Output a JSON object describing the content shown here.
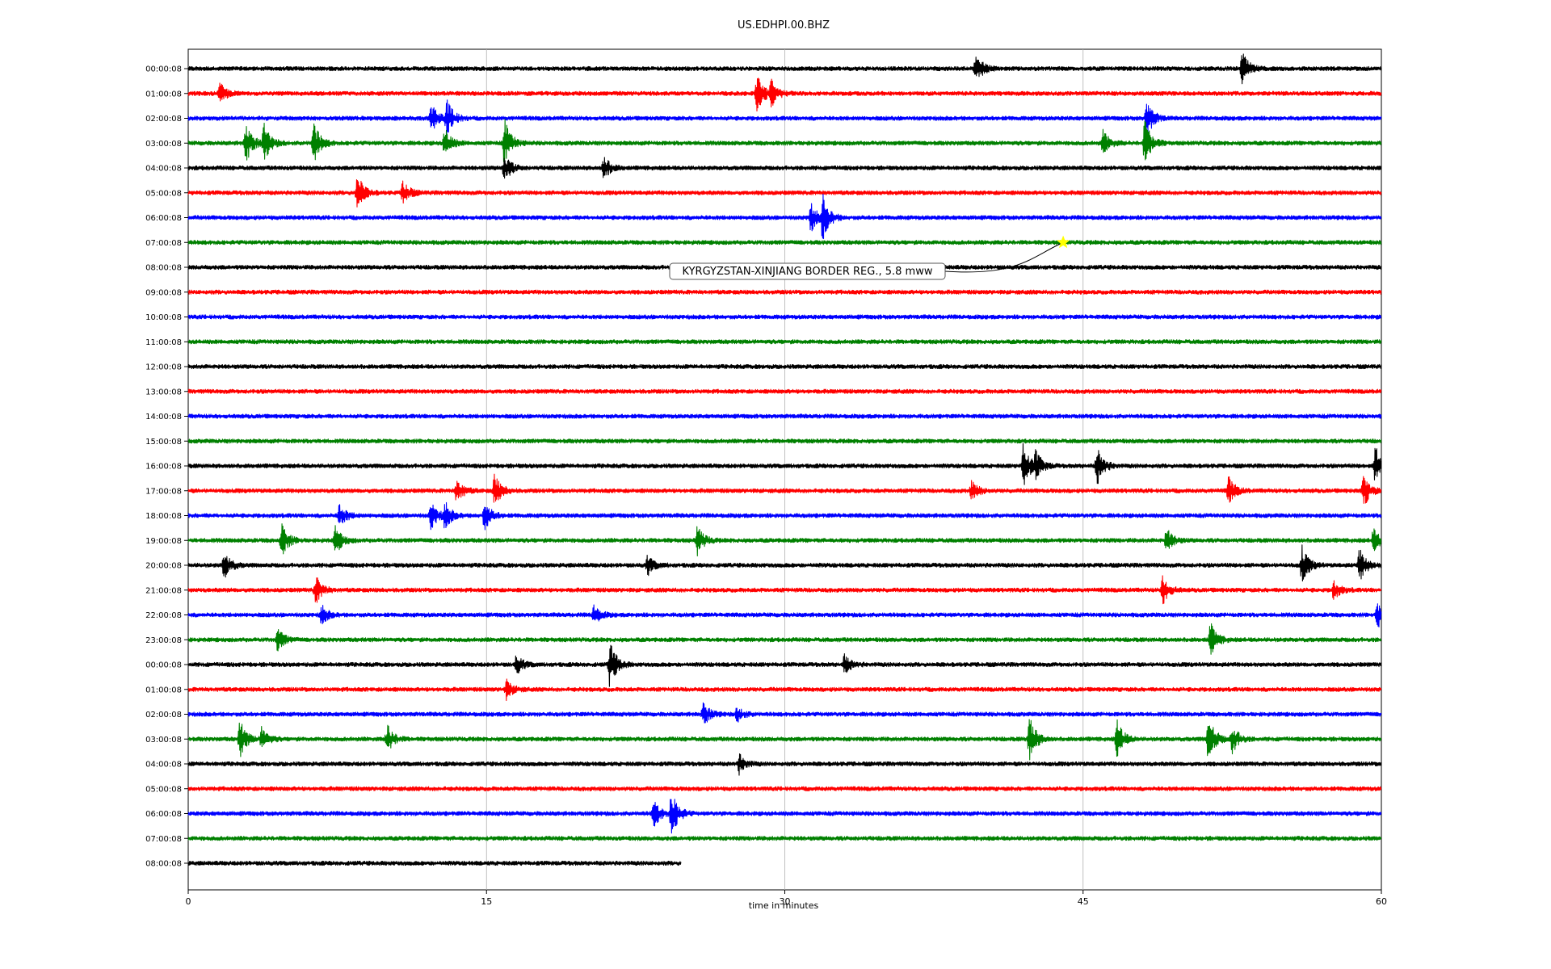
{
  "chart_data": {
    "type": "line",
    "title": "US.EDHPI.00.BHZ",
    "xlabel": "time in minutes",
    "ylabel": "",
    "xlim": [
      0,
      60
    ],
    "xticks": [
      0,
      15,
      30,
      45,
      60
    ],
    "grid_x": true,
    "trace_colors": [
      "#000000",
      "#ff0000",
      "#0000ff",
      "#008000"
    ],
    "row_labels": [
      "00:00:08",
      "01:00:08",
      "02:00:08",
      "03:00:08",
      "04:00:08",
      "05:00:08",
      "06:00:08",
      "07:00:08",
      "08:00:08",
      "09:00:08",
      "10:00:08",
      "11:00:08",
      "12:00:08",
      "13:00:08",
      "14:00:08",
      "15:00:08",
      "16:00:08",
      "17:00:08",
      "18:00:08",
      "19:00:08",
      "20:00:08",
      "21:00:08",
      "22:00:08",
      "23:00:08",
      "00:00:08",
      "01:00:08",
      "02:00:08",
      "03:00:08",
      "04:00:08",
      "05:00:08",
      "06:00:08",
      "07:00:08",
      "08:00:08"
    ],
    "last_row_end_minute": 24.8,
    "events": [
      {
        "row": 0,
        "minute": 39.6,
        "amp": 0.7
      },
      {
        "row": 0,
        "minute": 53.0,
        "amp": 0.7
      },
      {
        "row": 1,
        "minute": 28.6,
        "amp": 0.9
      },
      {
        "row": 1,
        "minute": 29.3,
        "amp": 0.6
      },
      {
        "row": 1,
        "minute": 1.6,
        "amp": 0.4
      },
      {
        "row": 2,
        "minute": 12.2,
        "amp": 0.7
      },
      {
        "row": 2,
        "minute": 13.0,
        "amp": 0.8
      },
      {
        "row": 2,
        "minute": 48.2,
        "amp": 0.8
      },
      {
        "row": 3,
        "minute": 2.9,
        "amp": 0.9
      },
      {
        "row": 3,
        "minute": 3.8,
        "amp": 0.8
      },
      {
        "row": 3,
        "minute": 6.3,
        "amp": 0.9
      },
      {
        "row": 3,
        "minute": 12.9,
        "amp": 0.6
      },
      {
        "row": 3,
        "minute": 15.9,
        "amp": 1.0
      },
      {
        "row": 3,
        "minute": 46.0,
        "amp": 0.5
      },
      {
        "row": 3,
        "minute": 48.1,
        "amp": 1.0
      },
      {
        "row": 4,
        "minute": 15.9,
        "amp": 0.6
      },
      {
        "row": 4,
        "minute": 20.9,
        "amp": 0.5
      },
      {
        "row": 5,
        "minute": 8.5,
        "amp": 0.8
      },
      {
        "row": 5,
        "minute": 10.8,
        "amp": 0.5
      },
      {
        "row": 6,
        "minute": 31.9,
        "amp": 1.0
      },
      {
        "row": 6,
        "minute": 31.3,
        "amp": 0.6
      },
      {
        "row": 16,
        "minute": 42.0,
        "amp": 1.0
      },
      {
        "row": 16,
        "minute": 42.6,
        "amp": 0.7
      },
      {
        "row": 16,
        "minute": 45.7,
        "amp": 0.8
      },
      {
        "row": 16,
        "minute": 59.7,
        "amp": 0.8
      },
      {
        "row": 17,
        "minute": 13.5,
        "amp": 0.5
      },
      {
        "row": 17,
        "minute": 15.4,
        "amp": 0.7
      },
      {
        "row": 17,
        "minute": 39.4,
        "amp": 0.4
      },
      {
        "row": 17,
        "minute": 52.3,
        "amp": 0.6
      },
      {
        "row": 17,
        "minute": 59.1,
        "amp": 0.7
      },
      {
        "row": 18,
        "minute": 7.6,
        "amp": 0.5
      },
      {
        "row": 18,
        "minute": 12.2,
        "amp": 0.6
      },
      {
        "row": 18,
        "minute": 12.9,
        "amp": 0.6
      },
      {
        "row": 18,
        "minute": 14.9,
        "amp": 0.6
      },
      {
        "row": 19,
        "minute": 4.7,
        "amp": 0.7
      },
      {
        "row": 19,
        "minute": 7.4,
        "amp": 0.6
      },
      {
        "row": 19,
        "minute": 25.6,
        "amp": 0.6
      },
      {
        "row": 19,
        "minute": 49.2,
        "amp": 0.5
      },
      {
        "row": 19,
        "minute": 59.6,
        "amp": 0.5
      },
      {
        "row": 20,
        "minute": 1.8,
        "amp": 0.6
      },
      {
        "row": 20,
        "minute": 23.1,
        "amp": 0.4
      },
      {
        "row": 20,
        "minute": 56.0,
        "amp": 0.8
      },
      {
        "row": 20,
        "minute": 58.9,
        "amp": 0.7
      },
      {
        "row": 21,
        "minute": 6.4,
        "amp": 0.6
      },
      {
        "row": 21,
        "minute": 49.0,
        "amp": 0.6
      },
      {
        "row": 21,
        "minute": 57.6,
        "amp": 0.4
      },
      {
        "row": 22,
        "minute": 6.7,
        "amp": 0.4
      },
      {
        "row": 22,
        "minute": 20.4,
        "amp": 0.4
      },
      {
        "row": 22,
        "minute": 59.8,
        "amp": 0.6
      },
      {
        "row": 23,
        "minute": 4.5,
        "amp": 0.5
      },
      {
        "row": 23,
        "minute": 51.4,
        "amp": 0.7
      },
      {
        "row": 24,
        "minute": 16.5,
        "amp": 0.4
      },
      {
        "row": 24,
        "minute": 21.2,
        "amp": 1.0
      },
      {
        "row": 24,
        "minute": 33.0,
        "amp": 0.4
      },
      {
        "row": 25,
        "minute": 16.0,
        "amp": 0.4
      },
      {
        "row": 26,
        "minute": 25.9,
        "amp": 0.5
      },
      {
        "row": 26,
        "minute": 27.6,
        "amp": 0.3
      },
      {
        "row": 27,
        "minute": 2.6,
        "amp": 0.8
      },
      {
        "row": 27,
        "minute": 3.7,
        "amp": 0.5
      },
      {
        "row": 27,
        "minute": 10.0,
        "amp": 0.6
      },
      {
        "row": 27,
        "minute": 42.3,
        "amp": 1.0
      },
      {
        "row": 27,
        "minute": 46.7,
        "amp": 0.8
      },
      {
        "row": 27,
        "minute": 51.3,
        "amp": 1.0
      },
      {
        "row": 27,
        "minute": 52.5,
        "amp": 0.6
      },
      {
        "row": 28,
        "minute": 27.7,
        "amp": 0.4
      },
      {
        "row": 30,
        "minute": 24.3,
        "amp": 1.0
      },
      {
        "row": 30,
        "minute": 23.4,
        "amp": 0.6
      }
    ],
    "annotation": {
      "text": "KYRGYZSTAN-XINJIANG BORDER REG., 5.8 mww",
      "marker": "star",
      "marker_color": "#ffff00",
      "row": 7,
      "minute": 44.0
    }
  }
}
